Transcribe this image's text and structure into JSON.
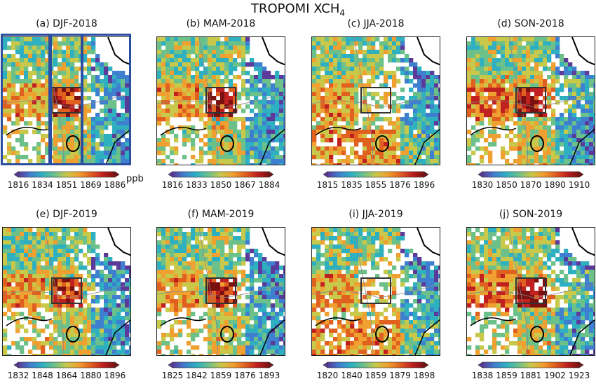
{
  "figure": {
    "title_main": "TROPOMI XCH",
    "title_sub": "4",
    "unit": "ppb"
  },
  "panels": [
    {
      "label": "(a) DJF-2018",
      "ticks": [
        "1816",
        "1834",
        "1851",
        "1869",
        "1886"
      ]
    },
    {
      "label": "(b) MAM-2018",
      "ticks": [
        "1816",
        "1833",
        "1850",
        "1867",
        "1884"
      ]
    },
    {
      "label": "(c) JJA-2018",
      "ticks": [
        "1815",
        "1835",
        "1855",
        "1876",
        "1896"
      ]
    },
    {
      "label": "(d) SON-2018",
      "ticks": [
        "1830",
        "1850",
        "1870",
        "1890",
        "1910"
      ]
    },
    {
      "label": "(e) DJF-2019",
      "ticks": [
        "1832",
        "1848",
        "1864",
        "1880",
        "1896"
      ]
    },
    {
      "label": "(f) MAM-2019",
      "ticks": [
        "1825",
        "1842",
        "1859",
        "1876",
        "1893"
      ]
    },
    {
      "label": "(i) JJA-2019",
      "ticks": [
        "1820",
        "1840",
        "1859",
        "1879",
        "1898"
      ]
    },
    {
      "label": "(j) SON-2019",
      "ticks": [
        "1838",
        "1859",
        "1881",
        "1902",
        "1923"
      ]
    }
  ],
  "colors": {
    "colormap": [
      "#5b3a9a",
      "#3f7fd0",
      "#2fb0c0",
      "#6cc08a",
      "#c8c84a",
      "#f0a030",
      "#e06020",
      "#c02020",
      "#7a1010"
    ],
    "region_box": "#333333",
    "highlight_frame": "#2b4fa0"
  }
}
